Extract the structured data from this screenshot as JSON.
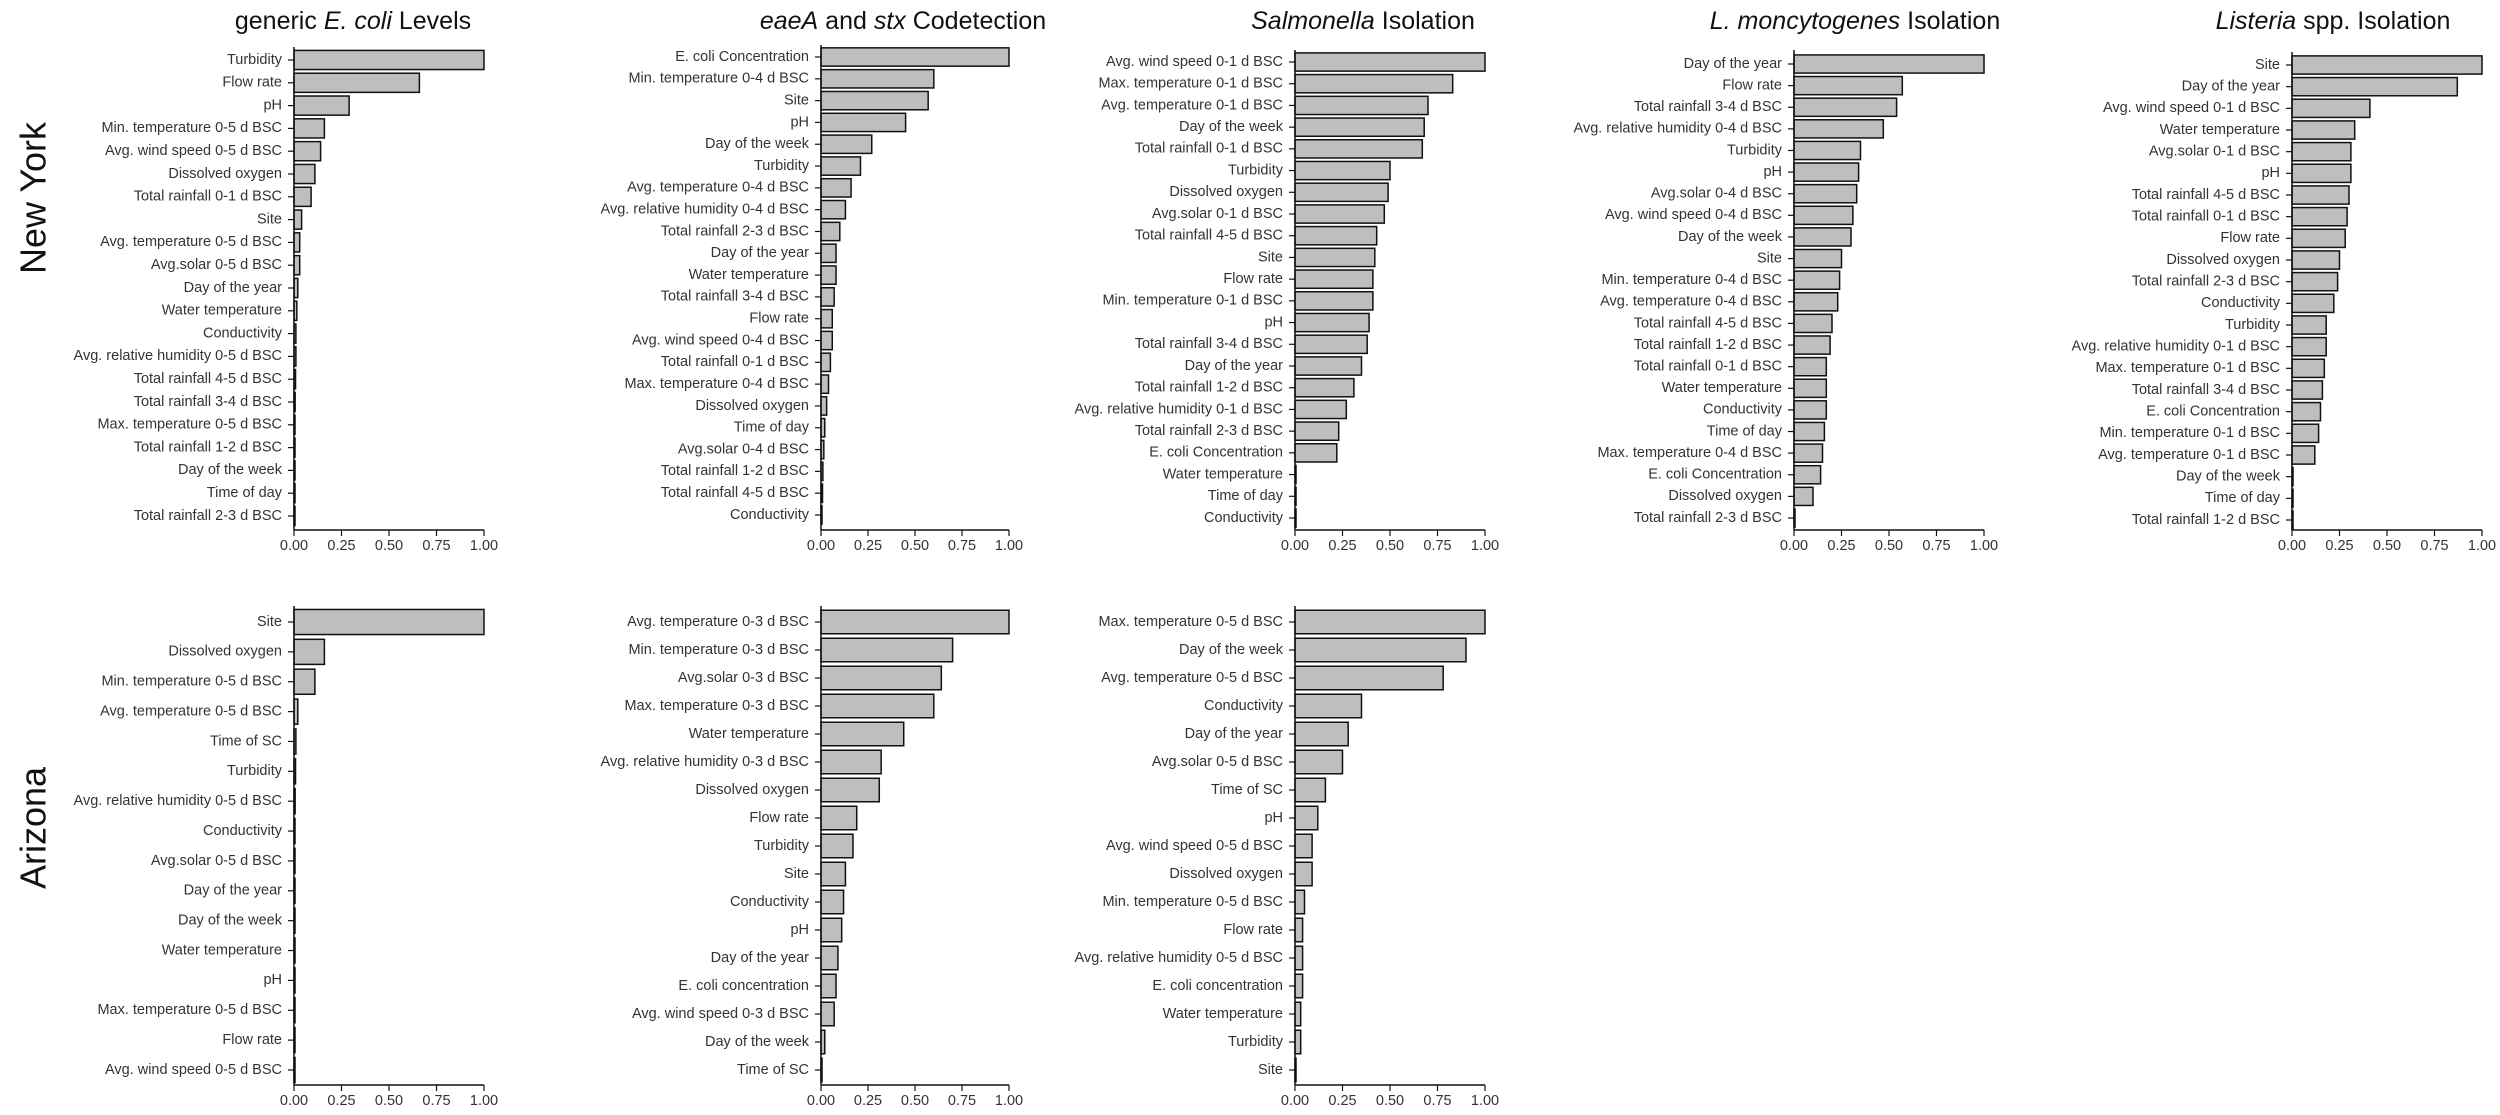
{
  "row_labels": [
    "New York",
    "Arizona"
  ],
  "chart_data": [
    {
      "type": "bar",
      "orientation": "horizontal",
      "row": "New York",
      "title_parts": [
        {
          "text": "generic ",
          "italic": false
        },
        {
          "text": "E. coli",
          "italic": true
        },
        {
          "text": " Levels",
          "italic": false
        }
      ],
      "categories": [
        "Turbidity",
        "Flow rate",
        "pH",
        "Min. temperature 0-5 d BSC",
        "Avg. wind speed 0-5 d BSC",
        "Dissolved oxygen",
        "Total rainfall 0-1 d BSC",
        "Site",
        "Avg. temperature 0-5 d BSC",
        "Avg.solar 0-5 d BSC",
        "Day of the year",
        "Water temperature",
        "Conductivity",
        "Avg. relative humidity 0-5 d BSC",
        "Total rainfall 4-5 d BSC",
        "Total rainfall 3-4 d BSC",
        "Max. temperature 0-5 d BSC",
        "Total rainfall 1-2 d BSC",
        "Day of the week",
        "Time of day",
        "Total rainfall 2-3 d BSC"
      ],
      "values": [
        1.0,
        0.66,
        0.29,
        0.16,
        0.14,
        0.11,
        0.09,
        0.04,
        0.03,
        0.03,
        0.02,
        0.015,
        0.01,
        0.01,
        0.008,
        0.006,
        0.005,
        0.004,
        0.003,
        0.002,
        0.002
      ],
      "xlim": [
        0,
        1
      ],
      "xticks": [
        "0.00",
        "0.25",
        "0.50",
        "0.75",
        "1.00"
      ]
    },
    {
      "type": "bar",
      "orientation": "horizontal",
      "row": "New York",
      "title_parts": [
        {
          "text": "eaeA",
          "italic": true
        },
        {
          "text": " and ",
          "italic": false
        },
        {
          "text": "stx",
          "italic": true
        },
        {
          "text": " Codetection",
          "italic": false
        }
      ],
      "categories": [
        "E. coli Concentration",
        "Min. temperature 0-4 d BSC",
        "Site",
        "pH",
        "Day of the week",
        "Turbidity",
        "Avg. temperature 0-4 d BSC",
        "Avg. relative humidity 0-4 d BSC",
        "Total rainfall 2-3 d BSC",
        "Day of the year",
        "Water temperature",
        "Total rainfall 3-4 d BSC",
        "Flow rate",
        "Avg. wind speed 0-4 d BSC",
        "Total rainfall 0-1 d BSC",
        "Max. temperature 0-4 d BSC",
        "Dissolved oxygen",
        "Time of day",
        "Avg.solar 0-4 d BSC",
        "Total rainfall 1-2 d BSC",
        "Total rainfall 4-5 d BSC",
        "Conductivity"
      ],
      "values": [
        1.0,
        0.6,
        0.57,
        0.45,
        0.27,
        0.21,
        0.16,
        0.13,
        0.1,
        0.08,
        0.08,
        0.07,
        0.06,
        0.06,
        0.05,
        0.04,
        0.03,
        0.02,
        0.015,
        0.01,
        0.008,
        0.004
      ],
      "xlim": [
        0,
        1
      ],
      "xticks": [
        "0.00",
        "0.25",
        "0.50",
        "0.75",
        "1.00"
      ]
    },
    {
      "type": "bar",
      "orientation": "horizontal",
      "row": "New York",
      "title_parts": [
        {
          "text": "Salmonella",
          "italic": true
        },
        {
          "text": " Isolation",
          "italic": false
        }
      ],
      "categories": [
        "Avg. wind speed 0-1 d BSC",
        "Max. temperature 0-1 d BSC",
        "Avg. temperature 0-1 d BSC",
        "Day of the week",
        "Total rainfall 0-1 d BSC",
        "Turbidity",
        "Dissolved oxygen",
        "Avg.solar 0-1 d BSC",
        "Total rainfall 4-5 d BSC",
        "Site",
        "Flow rate",
        "Min. temperature 0-1 d BSC",
        "pH",
        "Total rainfall 3-4 d BSC",
        "Day of the year",
        "Total rainfall 1-2 d BSC",
        "Avg. relative humidity 0-1 d BSC",
        "Total rainfall 2-3 d BSC",
        "E. coli Concentration",
        "Water temperature",
        "Time of day",
        "Conductivity"
      ],
      "values": [
        1.0,
        0.83,
        0.7,
        0.68,
        0.67,
        0.5,
        0.49,
        0.47,
        0.43,
        0.42,
        0.41,
        0.41,
        0.39,
        0.38,
        0.35,
        0.31,
        0.27,
        0.23,
        0.22,
        0.005,
        0.004,
        0.003
      ],
      "xlim": [
        0,
        1
      ],
      "xticks": [
        "0.00",
        "0.25",
        "0.50",
        "0.75",
        "1.00"
      ]
    },
    {
      "type": "bar",
      "orientation": "horizontal",
      "row": "New York",
      "title_parts": [
        {
          "text": "L. moncytogenes",
          "italic": true
        },
        {
          "text": " Isolation",
          "italic": false
        }
      ],
      "categories": [
        "Day of the year",
        "Flow rate",
        "Total rainfall 3-4 d BSC",
        "Avg. relative humidity 0-4 d BSC",
        "Turbidity",
        "pH",
        "Avg.solar 0-4 d BSC",
        "Avg. wind speed 0-4 d BSC",
        "Day of the week",
        "Site",
        "Min. temperature 0-4 d BSC",
        "Avg. temperature 0-4 d BSC",
        "Total rainfall 4-5 d BSC",
        "Total rainfall 1-2 d BSC",
        "Total rainfall 0-1 d BSC",
        "Water temperature",
        "Conductivity",
        "Time of day",
        "Max. temperature 0-4 d BSC",
        "E. coli Concentration",
        "Dissolved oxygen",
        "Total rainfall 2-3 d BSC"
      ],
      "values": [
        1.0,
        0.57,
        0.54,
        0.47,
        0.35,
        0.34,
        0.33,
        0.31,
        0.3,
        0.25,
        0.24,
        0.23,
        0.2,
        0.19,
        0.17,
        0.17,
        0.17,
        0.16,
        0.15,
        0.14,
        0.1,
        0.004
      ],
      "xlim": [
        0,
        1
      ],
      "xticks": [
        "0.00",
        "0.25",
        "0.50",
        "0.75",
        "1.00"
      ]
    },
    {
      "type": "bar",
      "orientation": "horizontal",
      "row": "New York",
      "title_parts": [
        {
          "text": "Listeria",
          "italic": true
        },
        {
          "text": " spp. Isolation",
          "italic": false
        }
      ],
      "categories": [
        "Site",
        "Day of the year",
        "Avg. wind speed 0-1 d BSC",
        "Water temperature",
        "Avg.solar 0-1 d BSC",
        "pH",
        "Total rainfall 4-5 d BSC",
        "Total rainfall 0-1 d BSC",
        "Flow rate",
        "Dissolved oxygen",
        "Total rainfall 2-3 d BSC",
        "Conductivity",
        "Turbidity",
        "Avg. relative humidity 0-1 d BSC",
        "Max. temperature 0-1 d BSC",
        "Total rainfall 3-4 d BSC",
        "E. coli Concentration",
        "Min. temperature 0-1 d BSC",
        "Avg. temperature 0-1 d BSC",
        "Day of the week",
        "Time of day",
        "Total rainfall 1-2 d BSC"
      ],
      "values": [
        1.0,
        0.87,
        0.41,
        0.33,
        0.31,
        0.31,
        0.3,
        0.29,
        0.28,
        0.25,
        0.24,
        0.22,
        0.18,
        0.18,
        0.17,
        0.16,
        0.15,
        0.14,
        0.12,
        0.004,
        0.003,
        0.002
      ],
      "xlim": [
        0,
        1
      ],
      "xticks": [
        "0.00",
        "0.25",
        "0.50",
        "0.75",
        "1.00"
      ]
    },
    {
      "type": "bar",
      "orientation": "horizontal",
      "row": "Arizona",
      "title_parts": [],
      "categories": [
        "Site",
        "Dissolved oxygen",
        "Min. temperature 0-5 d BSC",
        "Avg. temperature 0-5 d BSC",
        "Time of SC",
        "Turbidity",
        "Avg. relative humidity 0-5 d BSC",
        "Conductivity",
        "Avg.solar 0-5 d BSC",
        "Day of the year",
        "Day of the week",
        "Water temperature",
        "pH",
        "Max. temperature 0-5 d BSC",
        "Flow rate",
        "Avg. wind speed 0-5 d BSC"
      ],
      "values": [
        1.0,
        0.16,
        0.11,
        0.02,
        0.01,
        0.008,
        0.006,
        0.005,
        0.004,
        0.004,
        0.003,
        0.003,
        0.002,
        0.002,
        0.002,
        0.001
      ],
      "xlim": [
        0,
        1
      ],
      "xticks": [
        "0.00",
        "0.25",
        "0.50",
        "0.75",
        "1.00"
      ]
    },
    {
      "type": "bar",
      "orientation": "horizontal",
      "row": "Arizona",
      "title_parts": [],
      "categories": [
        "Avg. temperature 0-3 d BSC",
        "Min. temperature 0-3 d BSC",
        "Avg.solar 0-3 d BSC",
        "Max. temperature 0-3 d BSC",
        "Water temperature",
        "Avg. relative humidity 0-3 d BSC",
        "Dissolved oxygen",
        "Flow rate",
        "Turbidity",
        "Site",
        "Conductivity",
        "pH",
        "Day of the year",
        "E. coli concentration",
        "Avg. wind speed 0-3 d BSC",
        "Day of the week",
        "Time of SC"
      ],
      "values": [
        1.0,
        0.7,
        0.64,
        0.6,
        0.44,
        0.32,
        0.31,
        0.19,
        0.17,
        0.13,
        0.12,
        0.11,
        0.09,
        0.08,
        0.07,
        0.02,
        0.003
      ],
      "xlim": [
        0,
        1
      ],
      "xticks": [
        "0.00",
        "0.25",
        "0.50",
        "0.75",
        "1.00"
      ]
    },
    {
      "type": "bar",
      "orientation": "horizontal",
      "row": "Arizona",
      "title_parts": [],
      "categories": [
        "Max. temperature 0-5 d BSC",
        "Day of the week",
        "Avg. temperature 0-5 d BSC",
        "Conductivity",
        "Day of the year",
        "Avg.solar 0-5 d BSC",
        "Time of SC",
        "pH",
        "Avg. wind speed 0-5 d BSC",
        "Dissolved oxygen",
        "Min. temperature 0-5 d BSC",
        "Flow rate",
        "Avg. relative humidity 0-5 d BSC",
        "E. coli concentration",
        "Water temperature",
        "Turbidity",
        "Site"
      ],
      "values": [
        1.0,
        0.9,
        0.78,
        0.35,
        0.28,
        0.25,
        0.16,
        0.12,
        0.09,
        0.09,
        0.05,
        0.04,
        0.04,
        0.04,
        0.03,
        0.03,
        0.003
      ],
      "xlim": [
        0,
        1
      ],
      "xticks": [
        "0.00",
        "0.25",
        "0.50",
        "0.75",
        "1.00"
      ]
    }
  ]
}
